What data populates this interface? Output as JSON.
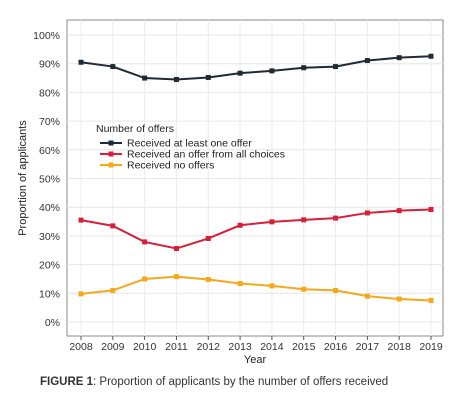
{
  "chart_data": {
    "type": "line",
    "xlabel": "Year",
    "ylabel": "Proportion of applicants",
    "x": [
      2008,
      2009,
      2010,
      2011,
      2012,
      2013,
      2014,
      2015,
      2016,
      2017,
      2018,
      2019
    ],
    "ylim": [
      0,
      100
    ],
    "yticks": [
      "0%",
      "10%",
      "20%",
      "30%",
      "40%",
      "50%",
      "60%",
      "70%",
      "80%",
      "90%",
      "100%"
    ],
    "grid": true,
    "legend_title": "Number of offers",
    "legend_position": "center-left",
    "series": [
      {
        "name": "Received at least one offer",
        "color": "#1f2a33",
        "values": [
          90.5,
          89,
          85,
          84.5,
          85.2,
          86.7,
          87.5,
          88.6,
          89,
          91.1,
          92.1,
          92.6
        ]
      },
      {
        "name": "Received an offer from all choices",
        "color": "#d6203a",
        "values": [
          35.5,
          33.5,
          27.9,
          25.6,
          29.1,
          33.7,
          34.9,
          35.6,
          36.2,
          38,
          38.8,
          39.2
        ]
      },
      {
        "name": "Received no offers",
        "color": "#f5a81c",
        "values": [
          9.8,
          11,
          15,
          15.8,
          14.8,
          13.4,
          12.6,
          11.4,
          11,
          9,
          8,
          7.5
        ]
      }
    ]
  },
  "caption": {
    "label": "FIGURE 1",
    "text": ": Proportion of applicants by the number of offers received"
  }
}
